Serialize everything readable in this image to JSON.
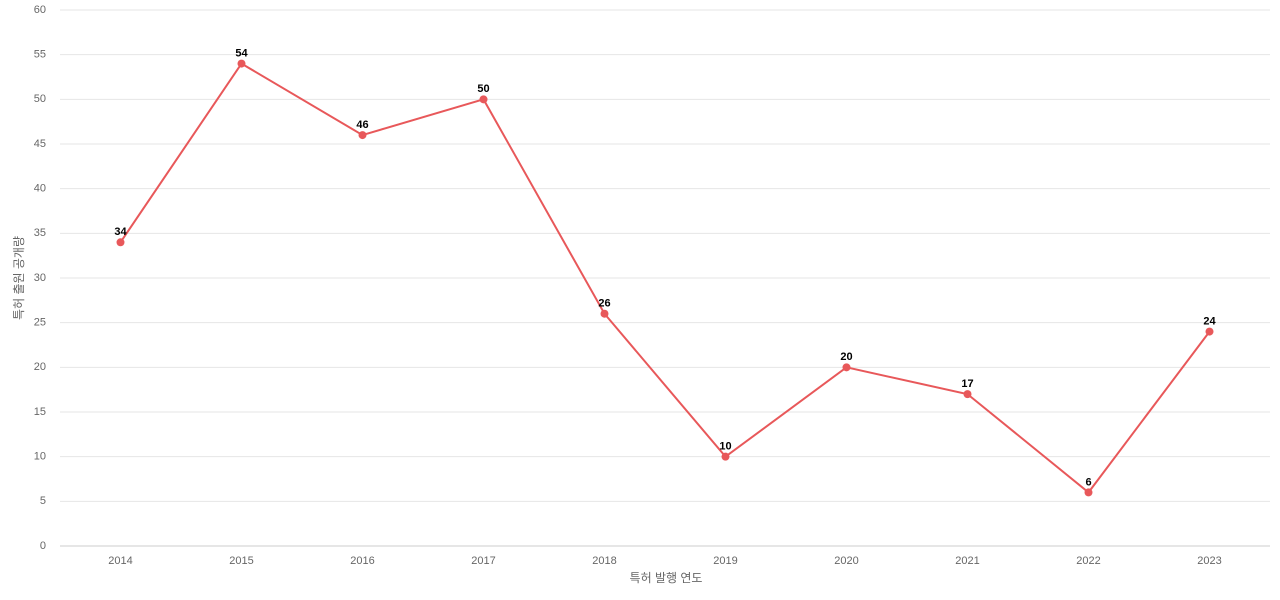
{
  "chart_data": {
    "type": "line",
    "x_label": "특허 발행 연도",
    "y_label": "특허 출원 공개량",
    "categories": [
      "2014",
      "2015",
      "2016",
      "2017",
      "2018",
      "2019",
      "2020",
      "2021",
      "2022",
      "2023"
    ],
    "series": [
      {
        "name": "특허 출원 공개량",
        "color": "#e8585a",
        "values": [
          34,
          54,
          46,
          50,
          26,
          10,
          20,
          17,
          6,
          24
        ]
      }
    ],
    "ylim": [
      0,
      60
    ],
    "yticks": [
      0,
      5,
      10,
      15,
      20,
      25,
      30,
      35,
      40,
      45,
      50,
      55,
      60
    ],
    "grid": true
  }
}
